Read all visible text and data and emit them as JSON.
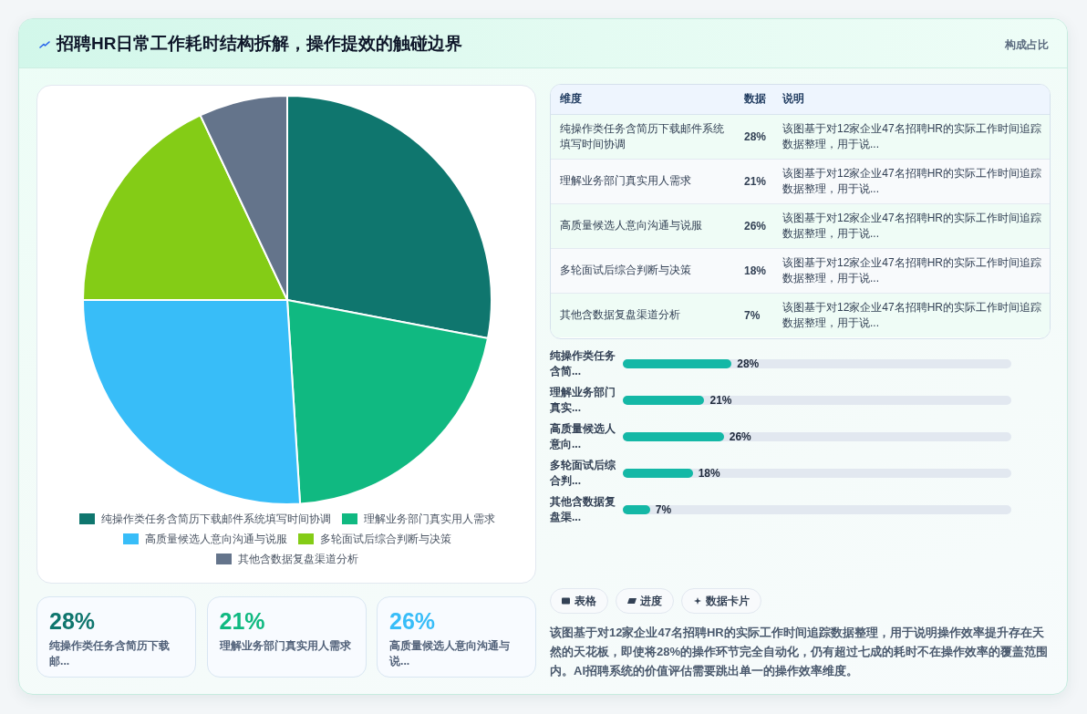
{
  "chart_data": [
    {
      "type": "other",
      "title": "招聘HR日常工作耗时结构拆解，操作提效的触碰边界",
      "subtitle": "构成占比"
    },
    {
      "type": "pie",
      "categories": [
        "纯操作类任务含简历下载邮件系统填写时间协调",
        "理解业务部门真实用人需求",
        "高质量候选人意向沟通与说服",
        "多轮面试后综合判断与决策",
        "其他含数据复盘渠道分析"
      ],
      "values": [
        28,
        21,
        26,
        18,
        7
      ],
      "colors": [
        "#0f766e",
        "#10b981",
        "#38bdf8",
        "#84cc16",
        "#64748b"
      ],
      "legend": "bottom"
    },
    {
      "type": "other",
      "categories": [
        "纯操作类任务含简历下载邮件系统填写时间协调",
        "理解业务部门真实用人需求",
        "高质量候选人意向沟通与说服",
        "多轮面试后综合判断与决策",
        "其他含数据复盘渠道分析"
      ],
      "value_labels": [
        "28%",
        "21%",
        "26%",
        "18%",
        "7%"
      ],
      "annotations": [
        "维度",
        "数据",
        "说明",
        "该图基于对12家企业47名招聘HR的实际工作时间追踪数据整理，用于说...",
        "该图基于对12家企业47名招聘HR的实际工作时间追踪数据整理，用于说...",
        "该图基于对12家企业47名招聘HR的实际工作时间追踪数据整理，用于说...",
        "该图基于对12家企业47名招聘HR的实际工作时间追踪数据整理，用于说...",
        "该图基于对12家企业47名招聘HR的实际工作时间追踪数据整理，用于说..."
      ]
    },
    {
      "type": "bar",
      "orientation": "horizontal",
      "categories": [
        "纯操作类任务含简...",
        "理解业务部门真实...",
        "高质量候选人意向...",
        "多轮面试后综合判...",
        "其他含数据复盘渠..."
      ],
      "values": [
        28,
        21,
        26,
        18,
        7
      ],
      "value_labels": [
        "28%",
        "21%",
        "26%",
        "18%",
        "7%"
      ],
      "color": "#14b8a6",
      "tick_labels": "y"
    },
    {
      "type": "other",
      "categories": [
        "纯操作类任务含简历下载邮...",
        "理解业务部门真实用人需求",
        "高质量候选人意向沟通与说..."
      ],
      "value_labels": [
        "28%",
        "21%",
        "26%"
      ]
    },
    {
      "type": "other",
      "categories": [
        "表格",
        "进度",
        "数据卡片"
      ],
      "annotations": [
        "该图基于对12家企业47名招聘HR的实际工作时间追踪数据整理，用于说明操作效率提升存在天然的天花板，即使将28%的操作环节完全自动化，仍有超过七成的耗时不在操作效率的覆盖范围内。AI招聘系统的价值评估需要跳出单一的操作效率维度。"
      ]
    }
  ]
}
